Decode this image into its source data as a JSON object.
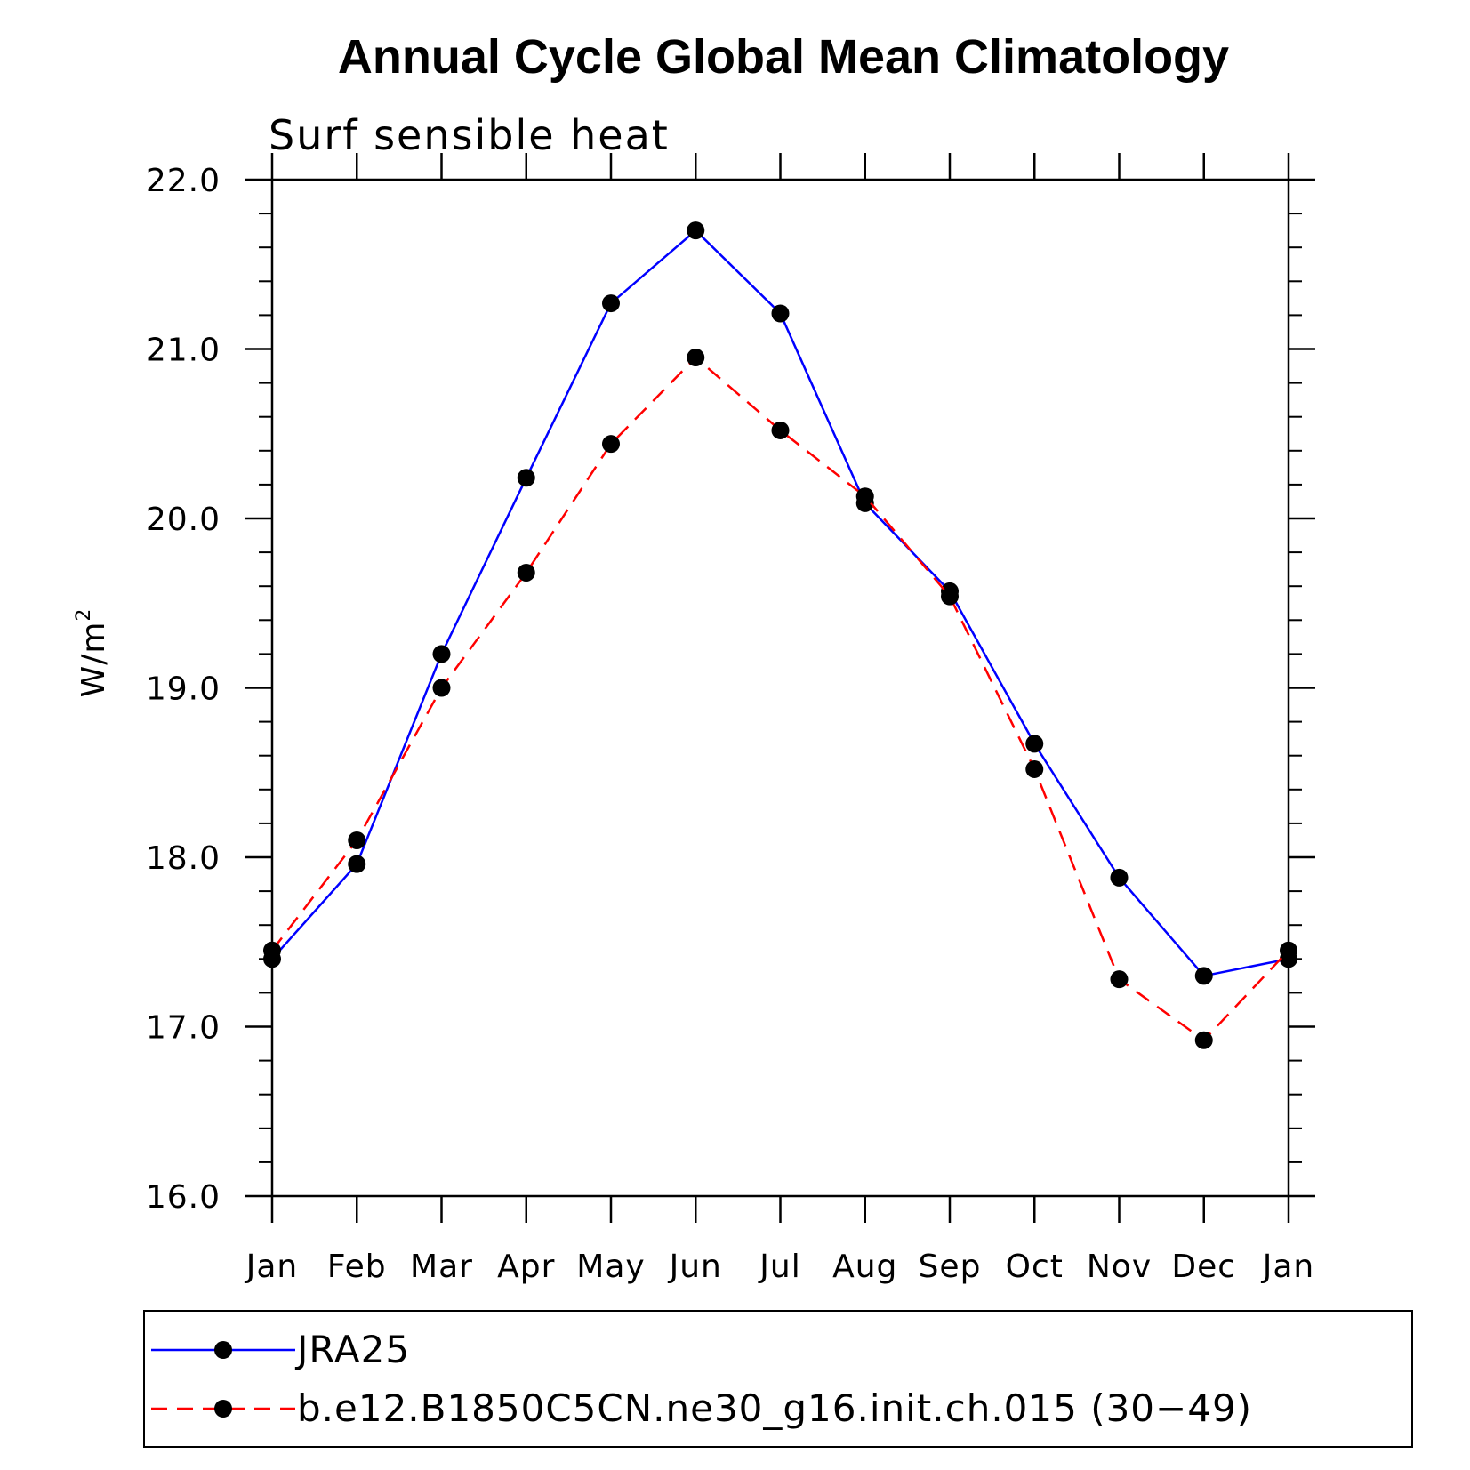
{
  "chart_data": {
    "type": "line",
    "title": "Annual Cycle Global Mean Climatology",
    "subtitle": "Surf sensible heat",
    "ylabel_base": "W/m",
    "ylabel_sup": "2",
    "xlabel": "",
    "categories": [
      "Jan",
      "Feb",
      "Mar",
      "Apr",
      "May",
      "Jun",
      "Jul",
      "Aug",
      "Sep",
      "Oct",
      "Nov",
      "Dec",
      "Jan"
    ],
    "ylim": [
      16.0,
      22.0
    ],
    "yticks": [
      16.0,
      17.0,
      18.0,
      19.0,
      20.0,
      21.0,
      22.0
    ],
    "ytick_labels": [
      "16.0",
      "17.0",
      "18.0",
      "19.0",
      "20.0",
      "21.0",
      "22.0"
    ],
    "y_minor_step": 0.2,
    "grid": false,
    "legend_position": "bottom",
    "series": [
      {
        "name": "JRA25",
        "color": "#0000ff",
        "dash": "solid",
        "marker": "circle",
        "values": [
          17.4,
          17.96,
          19.2,
          20.24,
          21.27,
          21.7,
          21.21,
          20.09,
          19.57,
          18.67,
          17.88,
          17.3,
          17.4
        ]
      },
      {
        "name": "b.e12.B1850C5CN.ne30_g16.init.ch.015 (30−49)",
        "color": "#ff0000",
        "dash": "dashed",
        "marker": "circle",
        "values": [
          17.45,
          18.1,
          19.0,
          19.68,
          20.44,
          20.95,
          20.52,
          20.13,
          19.54,
          18.52,
          17.28,
          16.92,
          17.45
        ]
      }
    ]
  }
}
